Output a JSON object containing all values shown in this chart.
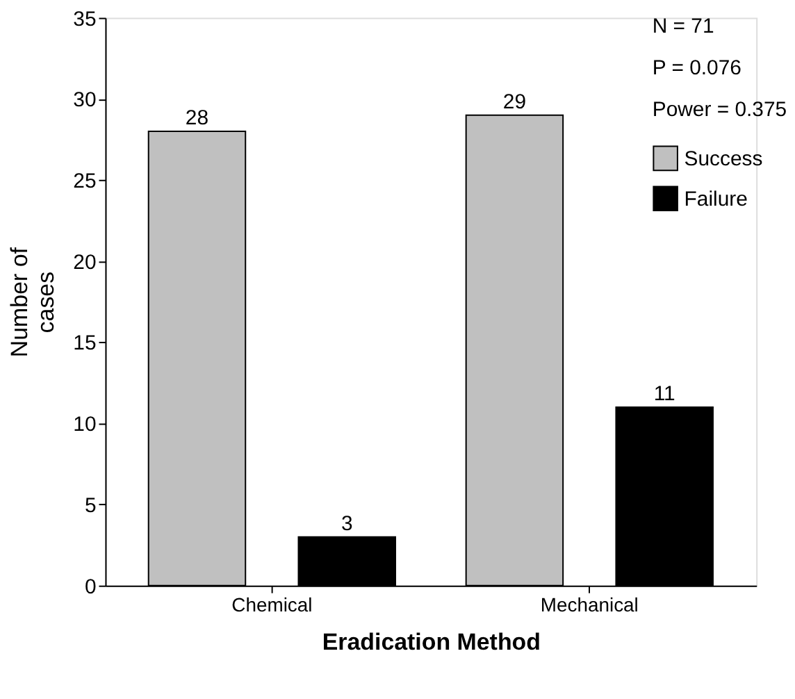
{
  "chart_data": {
    "type": "bar",
    "xlabel": "Eradication Method",
    "ylabel": "Number of cases",
    "categories": [
      "Chemical",
      "Mechanical"
    ],
    "series": [
      {
        "name": "Success",
        "color": "#c0c0c0",
        "values": [
          28,
          29
        ]
      },
      {
        "name": "Failure",
        "color": "#000000",
        "values": [
          3,
          11
        ]
      }
    ],
    "ylim": [
      0,
      35
    ],
    "yticks": [
      0,
      5,
      10,
      15,
      20,
      25,
      30,
      35
    ],
    "grid": false,
    "legend": "top right",
    "data_labels": true,
    "annotations": [
      "N = 71",
      "P = 0.076",
      "Power = 0.375"
    ]
  }
}
